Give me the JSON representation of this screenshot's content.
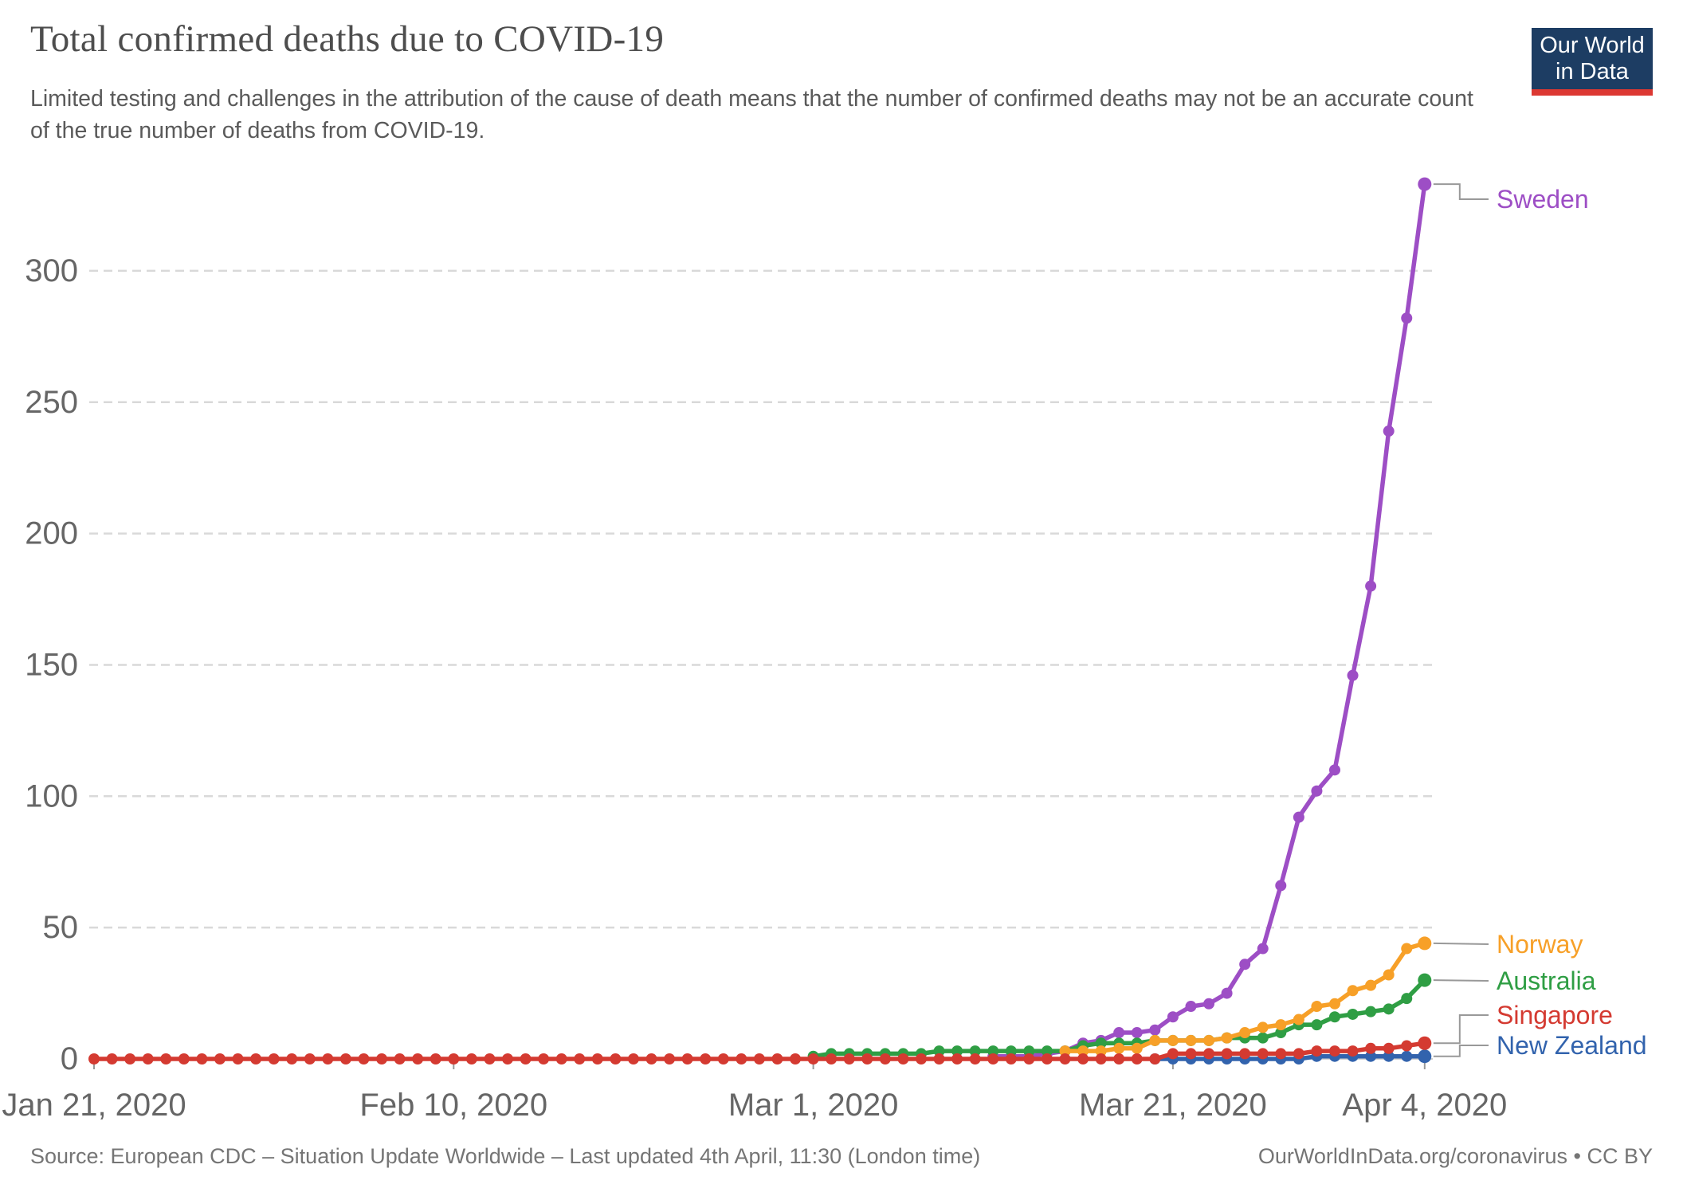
{
  "header": {
    "title": "Total confirmed deaths due to COVID-19",
    "subtitle": "Limited testing and challenges in the attribution of the cause of death means that the number of confirmed deaths may not be an accurate count of the true number of deaths from COVID-19."
  },
  "logo": {
    "line1": "Our World",
    "line2": "in Data",
    "bg_color": "#1d3d63",
    "accent_color": "#dc3832",
    "text_color": "#ffffff"
  },
  "footer": {
    "source": "Source: European CDC – Situation Update Worldwide – Last updated 4th April, 11:30 (London time)",
    "credit": "OurWorldInData.org/coronavirus • CC BY"
  },
  "chart_data": {
    "type": "line",
    "title": "Total confirmed deaths due to COVID-19",
    "xlabel": "",
    "ylabel": "",
    "x_axis": {
      "start_date": "Jan 21, 2020",
      "end_date": "Apr 4, 2020",
      "total_days": 74,
      "ticks": [
        {
          "label": "Jan 21, 2020",
          "day": 0
        },
        {
          "label": "Feb 10, 2020",
          "day": 20
        },
        {
          "label": "Mar 1, 2020",
          "day": 40
        },
        {
          "label": "Mar 21, 2020",
          "day": 60
        },
        {
          "label": "Apr 4, 2020",
          "day": 74
        }
      ]
    },
    "y_axis": {
      "ticks": [
        0,
        50,
        100,
        150,
        200,
        250,
        300
      ],
      "ylim": [
        0,
        340
      ],
      "gridlines": "dashed"
    },
    "legend_position": "right-end-labels",
    "series": [
      {
        "name": "Sweden",
        "color": "#9d4ec5",
        "start_day": 50,
        "start_date": "Mar 11, 2020",
        "values": [
          1,
          1,
          1,
          2,
          3,
          6,
          7,
          10,
          10,
          11,
          16,
          20,
          21,
          25,
          36,
          42,
          66,
          92,
          102,
          110,
          146,
          180,
          239,
          282,
          333
        ],
        "end_value": 333
      },
      {
        "name": "Australia",
        "color": "#2f9e44",
        "start_day": 40,
        "start_date": "Mar 1, 2020",
        "values": [
          1,
          2,
          2,
          2,
          2,
          2,
          2,
          3,
          3,
          3,
          3,
          3,
          3,
          3,
          3,
          5,
          6,
          6,
          6,
          7,
          7,
          7,
          7,
          8,
          8,
          8,
          10,
          13,
          13,
          16,
          17,
          18,
          19,
          23,
          30
        ],
        "end_value": 30
      },
      {
        "name": "Norway",
        "color": "#f7a028",
        "start_day": 54,
        "start_date": "Mar 15, 2020",
        "values": [
          3,
          3,
          3,
          4,
          4,
          7,
          7,
          7,
          7,
          8,
          10,
          12,
          13,
          15,
          20,
          21,
          26,
          28,
          32,
          42,
          44
        ],
        "end_value": 44
      },
      {
        "name": "New Zealand",
        "color": "#3263ad",
        "start_day": 59,
        "start_date": "Mar 20, 2020",
        "values": [
          0,
          0,
          0,
          0,
          0,
          0,
          0,
          0,
          0,
          1,
          1,
          1,
          1,
          1,
          1,
          1
        ],
        "end_value": 1
      },
      {
        "name": "Singapore",
        "color": "#d43a31",
        "start_day": 0,
        "start_date": "Jan 21, 2020",
        "values": [
          0,
          0,
          0,
          0,
          0,
          0,
          0,
          0,
          0,
          0,
          0,
          0,
          0,
          0,
          0,
          0,
          0,
          0,
          0,
          0,
          0,
          0,
          0,
          0,
          0,
          0,
          0,
          0,
          0,
          0,
          0,
          0,
          0,
          0,
          0,
          0,
          0,
          0,
          0,
          0,
          0,
          0,
          0,
          0,
          0,
          0,
          0,
          0,
          0,
          0,
          0,
          0,
          0,
          0,
          0,
          0,
          0,
          0,
          0,
          0,
          2,
          2,
          2,
          2,
          2,
          2,
          2,
          2,
          3,
          3,
          3,
          4,
          4,
          5,
          6
        ],
        "end_value": 6
      }
    ],
    "style": {
      "gridline_color": "#d9d9d9",
      "axis_line_color": "#cfcfcf",
      "tick_color": "#999999",
      "axis_text_color": "#666666",
      "connector_color": "#999999"
    }
  }
}
